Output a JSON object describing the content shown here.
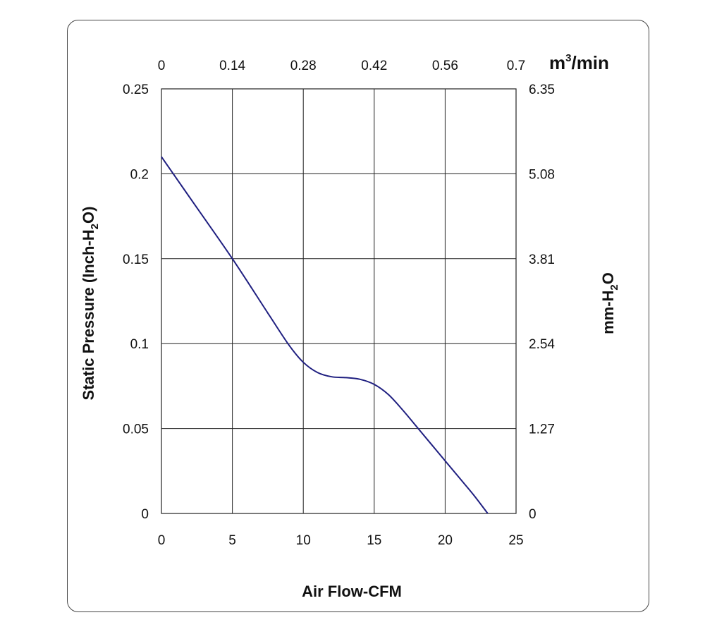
{
  "chart_data": {
    "type": "line",
    "xlabel": "Air Flow-CFM",
    "ylabel": "Static Pressure (Inch-H2O)",
    "ylabel_parts": [
      "Static Pressure (Inch-H",
      "2",
      "O)"
    ],
    "ylabel_right_parts": [
      "mm-H",
      "2",
      "O"
    ],
    "xlabel_top_parts": [
      "m",
      "3",
      "/min"
    ],
    "xlim": [
      0,
      25
    ],
    "ylim": [
      0,
      0.25
    ],
    "x_ticks": [
      "0",
      "5",
      "10",
      "15",
      "20",
      "25"
    ],
    "y_ticks": [
      "0",
      "0.05",
      "0.1",
      "0.15",
      "0.2",
      "0.25"
    ],
    "top_ticks": [
      "0",
      "0.14",
      "0.28",
      "0.42",
      "0.56",
      "0.7"
    ],
    "right_ticks": [
      "0",
      "1.27",
      "2.54",
      "3.81",
      "5.08",
      "6.35"
    ],
    "grid": true,
    "line_color": "#1f1f80",
    "series": [
      {
        "x": [
          0,
          2.5,
          5,
          7.5,
          9,
          10,
          11,
          12,
          13,
          14,
          15,
          16,
          17,
          18,
          19,
          20,
          21,
          22,
          23
        ],
        "y": [
          0.21,
          0.18,
          0.15,
          0.118,
          0.099,
          0.089,
          0.083,
          0.0805,
          0.08,
          0.079,
          0.076,
          0.07,
          0.061,
          0.051,
          0.041,
          0.031,
          0.021,
          0.011,
          0
        ]
      }
    ]
  }
}
